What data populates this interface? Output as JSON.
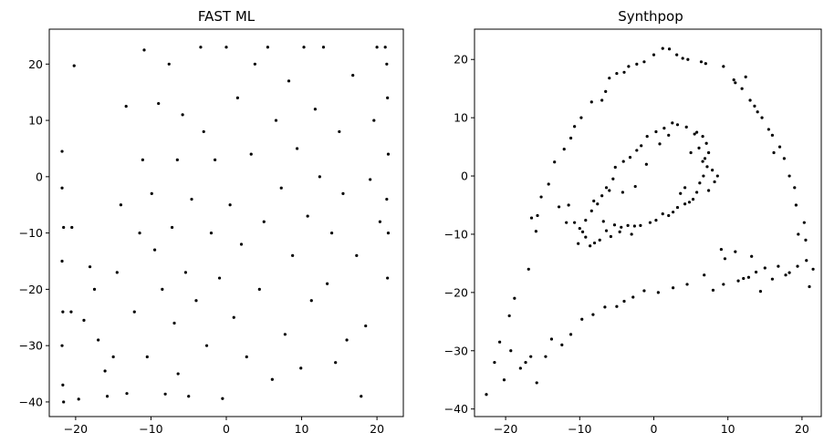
{
  "chart_data": [
    {
      "type": "scatter",
      "title": "FAST ML",
      "xlabel": "",
      "ylabel": "",
      "xlim": [
        -23.5,
        23.5
      ],
      "ylim": [
        -42.6,
        26.2
      ],
      "xticks": [
        -20,
        -10,
        0,
        10,
        20
      ],
      "yticks": [
        -40,
        -30,
        -20,
        -10,
        0,
        10,
        20
      ],
      "grid": false,
      "marker_color": "#000000",
      "points": [
        [
          -21.8,
          4.5
        ],
        [
          -21.8,
          -2
        ],
        [
          -21.6,
          -9
        ],
        [
          -21.8,
          -15
        ],
        [
          -21.7,
          -24
        ],
        [
          -21.8,
          -30
        ],
        [
          -21.7,
          -37
        ],
        [
          -21.6,
          -40
        ],
        [
          -20.2,
          19.7
        ],
        [
          -20.5,
          -9
        ],
        [
          -20.6,
          -24
        ],
        [
          -19.6,
          -39.5
        ],
        [
          -18.9,
          -25.5
        ],
        [
          -18.1,
          -16
        ],
        [
          -17.5,
          -20
        ],
        [
          -17,
          -29
        ],
        [
          -16.1,
          -34.5
        ],
        [
          -15.8,
          -39
        ],
        [
          -15,
          -32
        ],
        [
          -14.5,
          -17
        ],
        [
          -14,
          -5
        ],
        [
          -13.3,
          12.5
        ],
        [
          -13.2,
          -38.5
        ],
        [
          -12.2,
          -24
        ],
        [
          -11.5,
          -10
        ],
        [
          -11.1,
          3
        ],
        [
          -10.9,
          22.5
        ],
        [
          -10.5,
          -32
        ],
        [
          -9.9,
          -3
        ],
        [
          -9.5,
          -13
        ],
        [
          -9,
          13
        ],
        [
          -8.5,
          -20
        ],
        [
          -8.1,
          -38.6
        ],
        [
          -7.6,
          20
        ],
        [
          -7.2,
          -9
        ],
        [
          -6.9,
          -26
        ],
        [
          -6.5,
          3
        ],
        [
          -6.4,
          -35
        ],
        [
          -5.8,
          11
        ],
        [
          -5.4,
          -17
        ],
        [
          -5,
          -39
        ],
        [
          -4.6,
          -4
        ],
        [
          -4,
          -22
        ],
        [
          -3.4,
          23
        ],
        [
          -3,
          8
        ],
        [
          -2.6,
          -30
        ],
        [
          -2,
          -10
        ],
        [
          -1.5,
          3
        ],
        [
          -0.9,
          -18
        ],
        [
          -0.5,
          -39.4
        ],
        [
          0,
          23
        ],
        [
          0.5,
          -5
        ],
        [
          1,
          -25
        ],
        [
          1.5,
          14
        ],
        [
          2,
          -12
        ],
        [
          2.7,
          -32
        ],
        [
          3.3,
          4
        ],
        [
          3.8,
          20
        ],
        [
          4.4,
          -20
        ],
        [
          5,
          -8
        ],
        [
          5.5,
          23
        ],
        [
          6.1,
          -36
        ],
        [
          6.6,
          10
        ],
        [
          7.3,
          -2
        ],
        [
          7.8,
          -28
        ],
        [
          8.3,
          17
        ],
        [
          8.8,
          -14
        ],
        [
          9.4,
          5
        ],
        [
          9.9,
          -34
        ],
        [
          10.3,
          23
        ],
        [
          10.8,
          -7
        ],
        [
          11.3,
          -22
        ],
        [
          11.8,
          12
        ],
        [
          12.4,
          0
        ],
        [
          12.9,
          23
        ],
        [
          13.4,
          -19
        ],
        [
          14,
          -10
        ],
        [
          14.5,
          -33
        ],
        [
          15,
          8
        ],
        [
          15.5,
          -3
        ],
        [
          16,
          -29
        ],
        [
          16.8,
          18
        ],
        [
          17.3,
          -14
        ],
        [
          17.9,
          -39
        ],
        [
          18.5,
          -26.5
        ],
        [
          19.1,
          -0.5
        ],
        [
          19.6,
          10
        ],
        [
          20,
          23
        ],
        [
          20.4,
          -8
        ],
        [
          21.1,
          23
        ],
        [
          21.3,
          20
        ],
        [
          21.4,
          14
        ],
        [
          21.5,
          4
        ],
        [
          21.3,
          -4
        ],
        [
          21.5,
          -10
        ],
        [
          21.4,
          -18
        ]
      ]
    },
    {
      "type": "scatter",
      "title": "Synthpop",
      "xlabel": "",
      "ylabel": "",
      "xlim": [
        -24.2,
        22.6
      ],
      "ylim": [
        -41.3,
        25.2
      ],
      "xticks": [
        -20,
        -10,
        0,
        10,
        20
      ],
      "yticks": [
        -40,
        -30,
        -20,
        -10,
        0,
        10,
        20
      ],
      "grid": false,
      "marker_color": "#000000",
      "points": [
        [
          -22.6,
          -37.5
        ],
        [
          -21.5,
          -32
        ],
        [
          -20.8,
          -28.5
        ],
        [
          -20.2,
          -35
        ],
        [
          -19.3,
          -30
        ],
        [
          -19.5,
          -24
        ],
        [
          -18.8,
          -21
        ],
        [
          -18,
          -33
        ],
        [
          -17.3,
          -32
        ],
        [
          -16.6,
          -31
        ],
        [
          -16.9,
          -16
        ],
        [
          -15.8,
          -35.5
        ],
        [
          -14.6,
          -31
        ],
        [
          -13.8,
          -28
        ],
        [
          -12.4,
          -29
        ],
        [
          -11.2,
          -27.2
        ],
        [
          -9.7,
          -24.6
        ],
        [
          -8.2,
          -23.8
        ],
        [
          -6.6,
          -22.5
        ],
        [
          -5,
          -22.4
        ],
        [
          -4,
          -21.5
        ],
        [
          -2.8,
          -20.8
        ],
        [
          -1.3,
          -19.7
        ],
        [
          0.6,
          -20
        ],
        [
          2.6,
          -19.2
        ],
        [
          4.5,
          -18.6
        ],
        [
          6.8,
          -17
        ],
        [
          8,
          -19.6
        ],
        [
          9.4,
          -18.6
        ],
        [
          11.4,
          -18
        ],
        [
          12.8,
          -17.4
        ],
        [
          13.8,
          -16.5
        ],
        [
          15,
          -15.8
        ],
        [
          16,
          -17.7
        ],
        [
          16.8,
          -15.5
        ],
        [
          17.8,
          -17
        ],
        [
          18.3,
          -16.6
        ],
        [
          19.4,
          -15.5
        ],
        [
          20.6,
          -14.5
        ],
        [
          21.5,
          -16
        ],
        [
          21,
          -19
        ],
        [
          20.5,
          -11
        ],
        [
          20.3,
          -8
        ],
        [
          19.5,
          -10
        ],
        [
          19.2,
          -5
        ],
        [
          19,
          -2
        ],
        [
          18.3,
          0
        ],
        [
          17.6,
          3
        ],
        [
          17,
          5
        ],
        [
          16,
          7
        ],
        [
          16.2,
          4
        ],
        [
          15.5,
          8
        ],
        [
          14.6,
          10
        ],
        [
          14,
          11
        ],
        [
          13,
          13
        ],
        [
          13.6,
          12
        ],
        [
          11.9,
          15
        ],
        [
          11,
          16
        ],
        [
          12.4,
          17
        ],
        [
          10.8,
          16.5
        ],
        [
          9.4,
          18.8
        ],
        [
          7,
          19.3
        ],
        [
          6.4,
          19.6
        ],
        [
          4.6,
          20
        ],
        [
          3.9,
          20.2
        ],
        [
          3.1,
          20.8
        ],
        [
          2.1,
          21.8
        ],
        [
          1.2,
          21.9
        ],
        [
          0,
          20.8
        ],
        [
          -1.3,
          19.6
        ],
        [
          -2.3,
          19.2
        ],
        [
          -3.4,
          18.8
        ],
        [
          -4,
          17.8
        ],
        [
          -5,
          17.6
        ],
        [
          -6,
          16.8
        ],
        [
          -6.5,
          14.5
        ],
        [
          -7,
          13
        ],
        [
          -8.4,
          12.7
        ],
        [
          -9.8,
          10
        ],
        [
          -10.7,
          8.5
        ],
        [
          -11.2,
          6.5
        ],
        [
          -12.1,
          4.6
        ],
        [
          -13.4,
          2.4
        ],
        [
          -14.2,
          -1.4
        ],
        [
          -15.2,
          -3.6
        ],
        [
          -15.7,
          -6.8
        ],
        [
          -16.5,
          -7.2
        ],
        [
          -15.9,
          -9.5
        ],
        [
          -11.5,
          -5
        ],
        [
          -10.7,
          -8
        ],
        [
          -10,
          -9
        ],
        [
          -9.2,
          -10.5
        ],
        [
          -8.6,
          -12
        ],
        [
          -8,
          -11.5
        ],
        [
          -7.3,
          -11
        ],
        [
          -6.4,
          -9.4
        ],
        [
          -5.3,
          -8.4
        ],
        [
          -4.4,
          -8.8
        ],
        [
          -3.5,
          -8.5
        ],
        [
          -2.6,
          -8.6
        ],
        [
          -1.8,
          -8.5
        ],
        [
          -0.5,
          -8
        ],
        [
          0.3,
          -7.6
        ],
        [
          1.2,
          -6.5
        ],
        [
          2,
          -6.8
        ],
        [
          2.6,
          -6.2
        ],
        [
          3.2,
          -5.4
        ],
        [
          4.2,
          -4.8
        ],
        [
          4.8,
          -4.5
        ],
        [
          5.3,
          -4
        ],
        [
          5.8,
          -2.8
        ],
        [
          6.2,
          -1.2
        ],
        [
          6.7,
          0
        ],
        [
          7.2,
          1.6
        ],
        [
          7.9,
          1
        ],
        [
          8.6,
          0
        ],
        [
          8.2,
          -1
        ],
        [
          7.4,
          -2.5
        ],
        [
          6.9,
          3
        ],
        [
          7.4,
          4
        ],
        [
          7.1,
          5.6
        ],
        [
          6.6,
          6.8
        ],
        [
          5.5,
          7.2
        ],
        [
          4.4,
          8.4
        ],
        [
          3.2,
          8.8
        ],
        [
          2.5,
          9.1
        ],
        [
          1.4,
          8.2
        ],
        [
          0.3,
          7.6
        ],
        [
          -0.9,
          6.8
        ],
        [
          -1.7,
          5.2
        ],
        [
          -2.3,
          4.4
        ],
        [
          -3.2,
          3.2
        ],
        [
          -4.1,
          2.5
        ],
        [
          -5.2,
          1.5
        ],
        [
          -5.5,
          -0.5
        ],
        [
          -6.4,
          -2
        ],
        [
          -7,
          -3.4
        ],
        [
          -7.6,
          -4.8
        ],
        [
          -8.4,
          -6
        ],
        [
          -9.2,
          -7.6
        ],
        [
          -6.8,
          -7.8
        ],
        [
          -5.8,
          -10.4
        ],
        [
          -4.6,
          -9.6
        ],
        [
          -3,
          -10
        ],
        [
          -10.2,
          -11.6
        ],
        [
          -9.6,
          -9.6
        ],
        [
          -11.8,
          -8
        ],
        [
          -12.8,
          -5.3
        ],
        [
          3.6,
          -3
        ],
        [
          4.2,
          -2
        ],
        [
          5,
          4
        ],
        [
          5.8,
          7.5
        ],
        [
          6.1,
          4.8
        ],
        [
          6.6,
          2.5
        ],
        [
          0.8,
          5.5
        ],
        [
          2,
          7
        ],
        [
          -1,
          2
        ],
        [
          -2.5,
          -1.8
        ],
        [
          -4.2,
          -2.8
        ],
        [
          -6,
          -2.5
        ],
        [
          -8.1,
          -4.3
        ],
        [
          12.1,
          -17.6
        ],
        [
          14.4,
          -19.8
        ],
        [
          9.1,
          -12.6
        ],
        [
          9.6,
          -14.2
        ],
        [
          11,
          -13
        ],
        [
          13.2,
          -13.8
        ]
      ]
    }
  ]
}
